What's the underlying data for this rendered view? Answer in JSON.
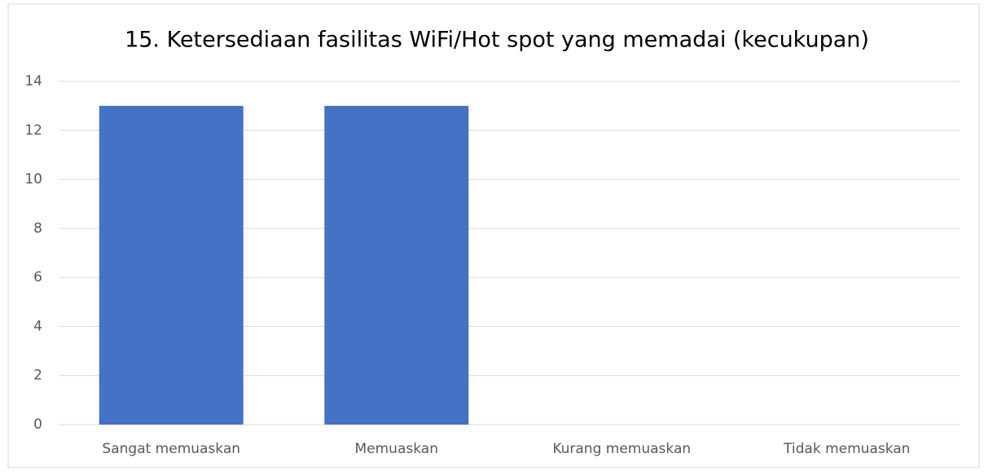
{
  "chart_data": {
    "type": "bar",
    "title": "15. Ketersediaan fasilitas WiFi/Hot spot yang memadai (kecukupan)",
    "categories": [
      "Sangat memuaskan",
      "Memuaskan",
      "Kurang memuaskan",
      "Tidak memuaskan"
    ],
    "values": [
      13,
      13,
      0,
      0
    ],
    "color": "#4472c4",
    "ylim": [
      0,
      14
    ],
    "yticks": [
      0,
      2,
      4,
      6,
      8,
      10,
      12,
      14
    ],
    "grid": true
  }
}
